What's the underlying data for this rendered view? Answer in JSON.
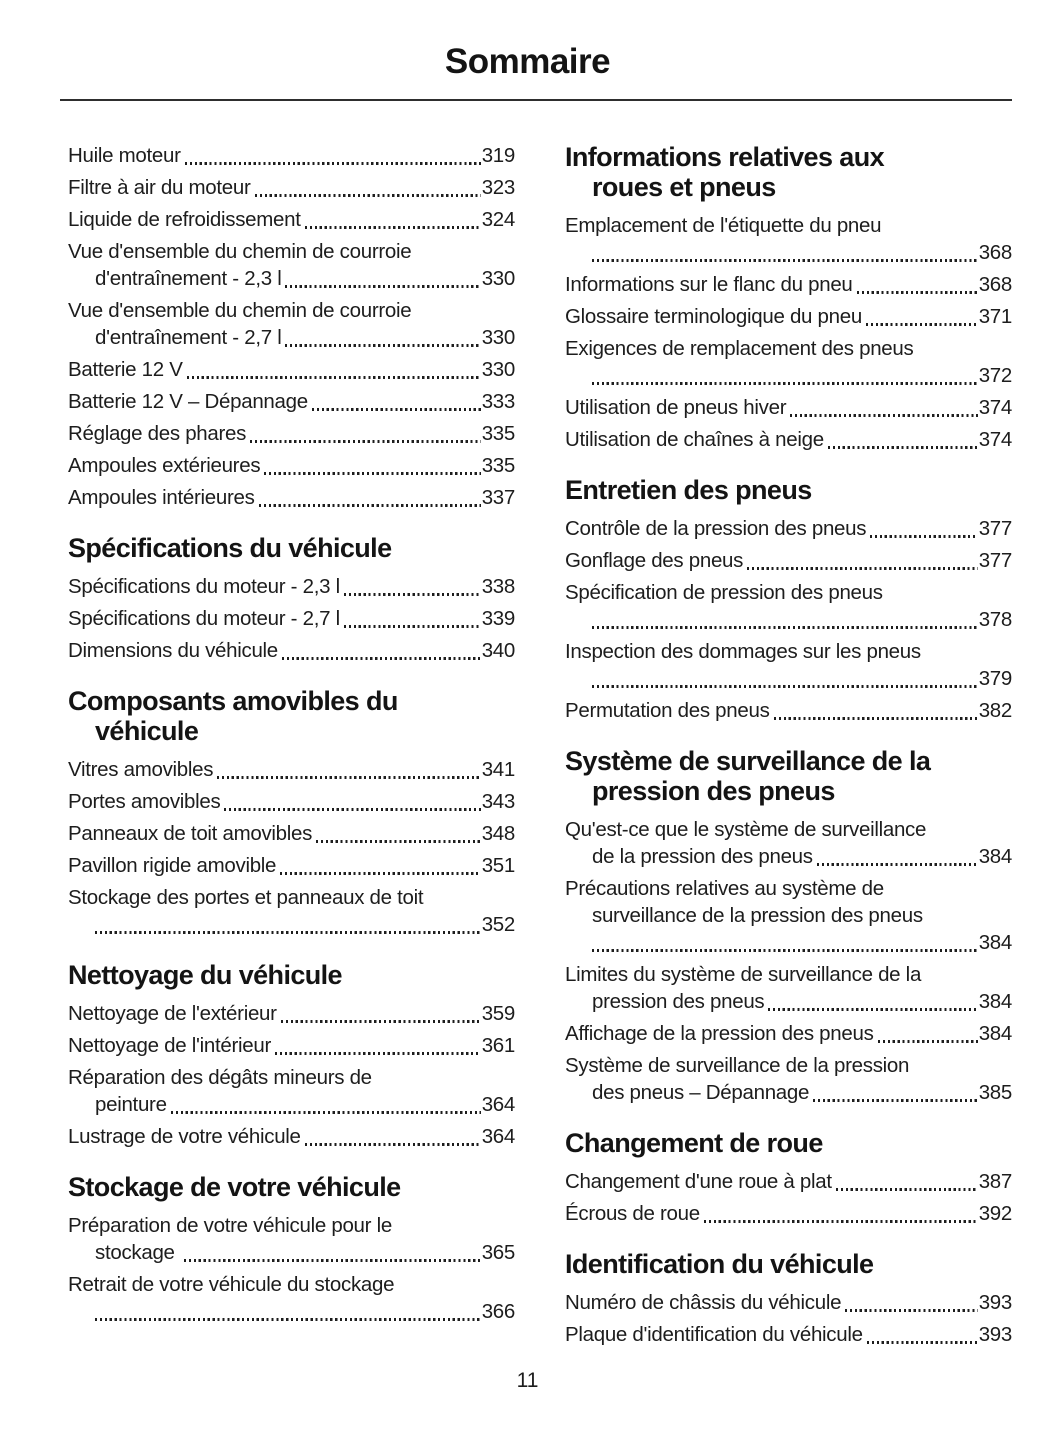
{
  "title": "Sommaire",
  "page_number": "11",
  "colors": {
    "ink": "#1d1d1d"
  },
  "columns": [
    {
      "sections": [
        {
          "heading_lines": null,
          "entries": [
            {
              "lines": [
                "Huile moteur"
              ],
              "page": "319"
            },
            {
              "lines": [
                "Filtre à air du moteur"
              ],
              "page": "323"
            },
            {
              "lines": [
                "Liquide de refroidissement"
              ],
              "page": "324"
            },
            {
              "lines": [
                "Vue d'ensemble du chemin de courroie",
                "d'entraînement - 2,3 l"
              ],
              "page": "330"
            },
            {
              "lines": [
                "Vue d'ensemble du chemin de courroie",
                "d'entraînement - 2,7 l"
              ],
              "page": "330"
            },
            {
              "lines": [
                "Batterie 12 V"
              ],
              "page": "330"
            },
            {
              "lines": [
                "Batterie 12 V – Dépannage"
              ],
              "page": "333"
            },
            {
              "lines": [
                "Réglage des phares"
              ],
              "page": "335"
            },
            {
              "lines": [
                "Ampoules extérieures"
              ],
              "page": "335"
            },
            {
              "lines": [
                "Ampoules intérieures"
              ],
              "page": "337"
            }
          ]
        },
        {
          "heading_lines": [
            "Spécifications du véhicule"
          ],
          "entries": [
            {
              "lines": [
                "Spécifications du moteur - 2,3 l"
              ],
              "page": "338"
            },
            {
              "lines": [
                "Spécifications du moteur - 2,7 l"
              ],
              "page": "339"
            },
            {
              "lines": [
                "Dimensions du véhicule"
              ],
              "page": "340"
            }
          ]
        },
        {
          "heading_lines": [
            "Composants amovibles du",
            "véhicule"
          ],
          "entries": [
            {
              "lines": [
                "Vitres amovibles"
              ],
              "page": "341"
            },
            {
              "lines": [
                "Portes amovibles"
              ],
              "page": "343"
            },
            {
              "lines": [
                "Panneaux de toit amovibles"
              ],
              "page": "348"
            },
            {
              "lines": [
                "Pavillon rigide amovible"
              ],
              "page": "351"
            },
            {
              "lines": [
                "Stockage des portes et panneaux de toit",
                ""
              ],
              "page": "352"
            }
          ]
        },
        {
          "heading_lines": [
            "Nettoyage du véhicule"
          ],
          "entries": [
            {
              "lines": [
                "Nettoyage de l'extérieur"
              ],
              "page": "359"
            },
            {
              "lines": [
                "Nettoyage de l'intérieur"
              ],
              "page": "361"
            },
            {
              "lines": [
                "Réparation des dégâts mineurs de",
                "peinture"
              ],
              "page": "364"
            },
            {
              "lines": [
                "Lustrage de votre véhicule"
              ],
              "page": "364"
            }
          ]
        },
        {
          "heading_lines": [
            "Stockage de votre véhicule"
          ],
          "entries": [
            {
              "lines": [
                "Préparation de votre véhicule pour le",
                "stockage "
              ],
              "page": "365"
            },
            {
              "lines": [
                "Retrait de votre véhicule du stockage",
                ""
              ],
              "page": "366"
            }
          ]
        }
      ]
    },
    {
      "sections": [
        {
          "heading_lines": [
            "Informations relatives aux",
            "roues et pneus"
          ],
          "entries": [
            {
              "lines": [
                "Emplacement de l'étiquette du pneu",
                ""
              ],
              "page": "368"
            },
            {
              "lines": [
                "Informations sur le flanc du pneu"
              ],
              "page": "368"
            },
            {
              "lines": [
                "Glossaire terminologique du pneu"
              ],
              "page": "371"
            },
            {
              "lines": [
                "Exigences de remplacement des pneus",
                ""
              ],
              "page": "372"
            },
            {
              "lines": [
                "Utilisation de pneus hiver"
              ],
              "page": "374"
            },
            {
              "lines": [
                "Utilisation de chaînes à neige"
              ],
              "page": "374"
            }
          ]
        },
        {
          "heading_lines": [
            "Entretien des pneus"
          ],
          "entries": [
            {
              "lines": [
                "Contrôle de la pression des pneus"
              ],
              "page": "377"
            },
            {
              "lines": [
                "Gonflage des pneus"
              ],
              "page": "377"
            },
            {
              "lines": [
                "Spécification de pression des pneus",
                ""
              ],
              "page": "378"
            },
            {
              "lines": [
                "Inspection des dommages sur les pneus",
                ""
              ],
              "page": "379"
            },
            {
              "lines": [
                "Permutation des pneus"
              ],
              "page": "382"
            }
          ]
        },
        {
          "heading_lines": [
            "Système de surveillance de la",
            "pression des pneus"
          ],
          "entries": [
            {
              "lines": [
                "Qu'est-ce que le système de surveillance",
                "de la pression des pneus"
              ],
              "page": "384"
            },
            {
              "lines": [
                "Précautions relatives au système de",
                "surveillance de la pression des pneus",
                ""
              ],
              "page": "384"
            },
            {
              "lines": [
                "Limites du système de surveillance de la",
                "pression des pneus"
              ],
              "page": "384"
            },
            {
              "lines": [
                "Affichage de la pression des pneus"
              ],
              "page": "384"
            },
            {
              "lines": [
                "Système de surveillance de la pression",
                "des pneus – Dépannage"
              ],
              "page": "385"
            }
          ]
        },
        {
          "heading_lines": [
            "Changement de roue"
          ],
          "entries": [
            {
              "lines": [
                "Changement d'une roue à plat"
              ],
              "page": "387"
            },
            {
              "lines": [
                "Écrous de roue"
              ],
              "page": "392"
            }
          ]
        },
        {
          "heading_lines": [
            "Identification du véhicule"
          ],
          "entries": [
            {
              "lines": [
                "Numéro de châssis du véhicule"
              ],
              "page": "393"
            },
            {
              "lines": [
                "Plaque d'identification du véhicule"
              ],
              "page": "393"
            }
          ]
        }
      ]
    }
  ]
}
